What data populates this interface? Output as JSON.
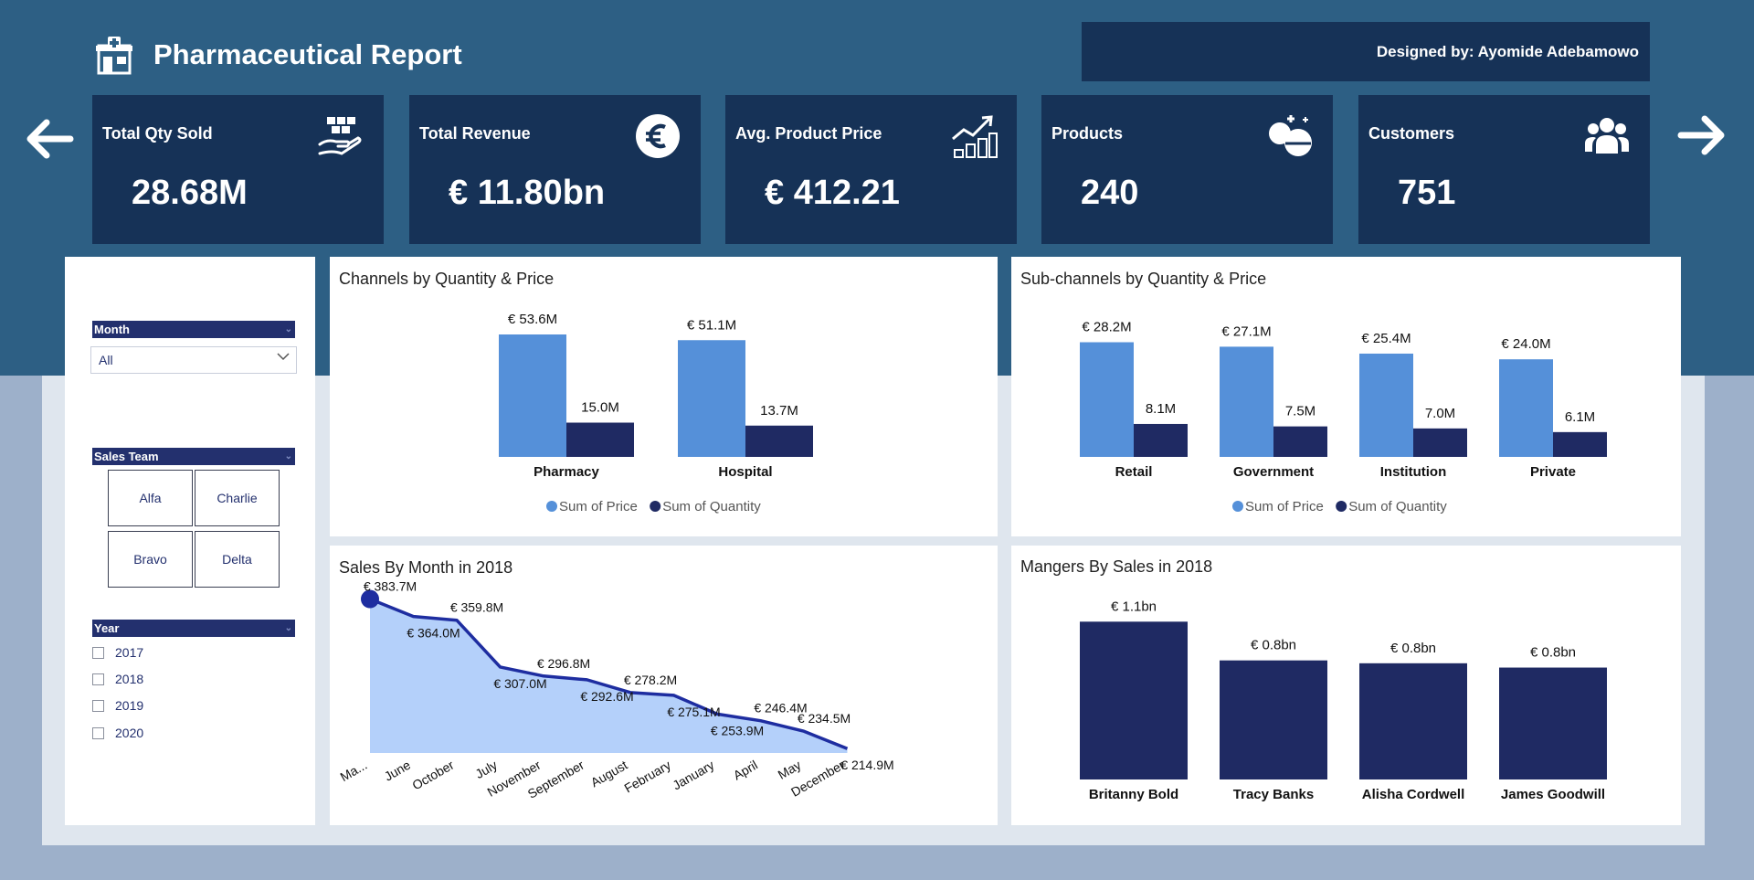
{
  "header": {
    "title": "Pharmaceutical Report",
    "designer": "Designed by: Ayomide Adebamowo"
  },
  "kpis": [
    {
      "label": "Total Qty Sold",
      "value": "28.68M",
      "icon": "hand-boxes-icon"
    },
    {
      "label": "Total Revenue",
      "value": "€ 11.80bn",
      "icon": "euro-icon"
    },
    {
      "label": "Avg. Product Price",
      "value": "€ 412.21",
      "icon": "growth-chart-icon"
    },
    {
      "label": "Products",
      "value": "240",
      "icon": "pills-icon"
    },
    {
      "label": "Customers",
      "value": "751",
      "icon": "users-icon"
    }
  ],
  "filters": {
    "month": {
      "title": "Month",
      "selected": "All"
    },
    "sales_team": {
      "title": "Sales Team",
      "options": [
        "Alfa",
        "Charlie",
        "Bravo",
        "Delta"
      ]
    },
    "year": {
      "title": "Year",
      "options": [
        "2017",
        "2018",
        "2019",
        "2020"
      ]
    }
  },
  "colors": {
    "price": "#5590d9",
    "quantity": "#1f2a63",
    "area": "#b4d0fa",
    "line": "#1e2da0",
    "bar": "#1f2a63"
  },
  "chart_data": [
    {
      "type": "bar",
      "title": "Channels by Quantity & Price",
      "categories": [
        "Pharmacy",
        "Hospital"
      ],
      "series": [
        {
          "name": "Sum of Price",
          "values": [
            53.6,
            51.1
          ],
          "labels": [
            "€ 53.6M",
            "€ 51.1M"
          ]
        },
        {
          "name": "Sum of Quantity",
          "values": [
            15.0,
            13.7
          ],
          "labels": [
            "15.0M",
            "13.7M"
          ]
        }
      ]
    },
    {
      "type": "bar",
      "title": "Sub-channels by Quantity & Price",
      "categories": [
        "Retail",
        "Government",
        "Institution",
        "Private"
      ],
      "series": [
        {
          "name": "Sum of Price",
          "values": [
            28.2,
            27.1,
            25.4,
            24.0
          ],
          "labels": [
            "€ 28.2M",
            "€ 27.1M",
            "€ 25.4M",
            "€ 24.0M"
          ]
        },
        {
          "name": "Sum of Quantity",
          "values": [
            8.1,
            7.5,
            7.0,
            6.1
          ],
          "labels": [
            "8.1M",
            "7.5M",
            "7.0M",
            "6.1M"
          ]
        }
      ]
    },
    {
      "type": "area",
      "title": "Sales By Month in 2018",
      "categories": [
        "Ma...",
        "June",
        "October",
        "July",
        "November",
        "September",
        "August",
        "February",
        "January",
        "April",
        "May",
        "December"
      ],
      "values": [
        383.7,
        364.0,
        359.8,
        307.0,
        296.8,
        292.6,
        278.2,
        275.1,
        253.9,
        246.4,
        234.5,
        214.9
      ],
      "labels": [
        "€ 383.7M",
        "€ 364.0M",
        "€ 359.8M",
        "€ 307.0M",
        "€ 296.8M",
        "€ 292.6M",
        "€ 278.2M",
        "€ 275.1M",
        "€ 253.9M",
        "€ 246.4M",
        "€ 234.5M",
        "€ 214.9M"
      ]
    },
    {
      "type": "bar",
      "title": "Mangers By Sales in 2018",
      "categories": [
        "Britanny Bold",
        "Tracy Banks",
        "Alisha Cordwell",
        "James Goodwill"
      ],
      "values": [
        1.1,
        0.83,
        0.81,
        0.78
      ],
      "labels": [
        "€ 1.1bn",
        "€ 0.8bn",
        "€ 0.8bn",
        "€ 0.8bn"
      ]
    }
  ]
}
